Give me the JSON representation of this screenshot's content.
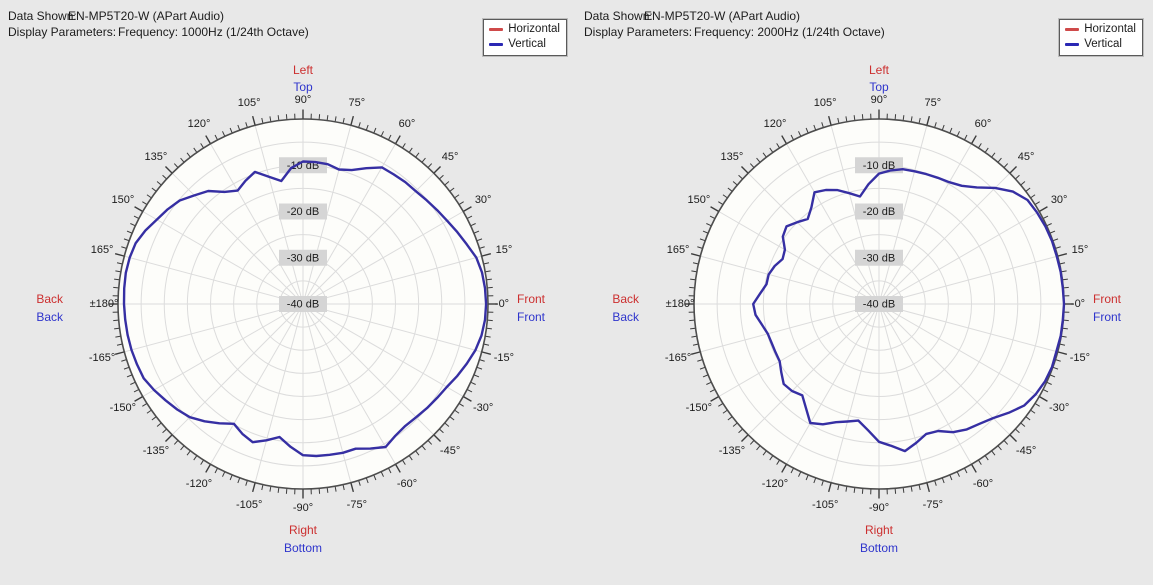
{
  "header_labels": {
    "data_shown": "Data Shown:",
    "display_parameters": "Display Parameters:"
  },
  "panels": [
    {
      "data_shown": "EN-MP5T20-W (APart Audio)",
      "display_parameters": "Frequency: 1000Hz (1/24th Octave)"
    },
    {
      "data_shown": "EN-MP5T20-W (APart Audio)",
      "display_parameters": "Frequency: 2000Hz (1/24th Octave)"
    }
  ],
  "legend": {
    "items": [
      {
        "label": "Horizontal",
        "color": "#cf4a4a"
      },
      {
        "label": "Vertical",
        "color": "#2a28b4"
      }
    ]
  },
  "direction_labels": {
    "top_red": "Left",
    "top_blue": "Top",
    "left_red": "Back",
    "left_blue": "Back",
    "right_red": "Front",
    "right_blue": "Front",
    "bottom_red": "Right",
    "bottom_blue": "Bottom"
  },
  "angle_ticks": {
    "angles": [
      90,
      75,
      60,
      45,
      30,
      15,
      0,
      -15,
      -30,
      -45,
      -60,
      -75,
      -90,
      -105,
      -120,
      -135,
      -150,
      -165,
      180,
      165,
      150,
      135,
      120,
      105
    ],
    "labels": [
      "90°",
      "75°",
      "60°",
      "45°",
      "30°",
      "15°",
      "-0°",
      "-15°",
      "-30°",
      "-45°",
      "-60°",
      "-75°",
      "-90°",
      "-105°",
      "-120°",
      "-135°",
      "-150°",
      "-165°",
      "±180°",
      "165°",
      "150°",
      "135°",
      "120°",
      "105°"
    ]
  },
  "db_labels": [
    "-10 dB",
    "-20 dB",
    "-30 dB",
    "-40 dB"
  ],
  "colors": {
    "background": "#e8e8e8",
    "plot_fill": "#fdfdfa",
    "grid": "#dcdcdc",
    "axis": "#4d4d4d",
    "tick": "#3c3c3c",
    "text": "#1c1c1c",
    "db_label_bg": "#d5d5d5",
    "red_label": "#cc2f2f",
    "blue_label": "#2f35cc",
    "curve": "#362fa3"
  },
  "chart_data": [
    {
      "type": "line",
      "polar": true,
      "title": "EN-MP5T20-W (APart Audio)",
      "subtitle": "Frequency: 1000Hz (1/24th Octave)",
      "legend_entries": [
        "Horizontal",
        "Vertical"
      ],
      "radial_axis": {
        "unit": "dB",
        "outer_db": 0,
        "center_db": -40,
        "ring_step_db": 5,
        "labeled_db": [
          -10,
          -20,
          -30,
          -40
        ]
      },
      "angle_step_deg": 15,
      "series": [
        {
          "name": "Vertical",
          "color": "#362fa3",
          "angles_deg": [
            0,
            5,
            10,
            15,
            20,
            25,
            30,
            35,
            40,
            45,
            50,
            55,
            60,
            65,
            70,
            75,
            80,
            85,
            90,
            95,
            100,
            105,
            110,
            115,
            120,
            125,
            130,
            135,
            140,
            145,
            150,
            155,
            160,
            165,
            170,
            175,
            180,
            -175,
            -170,
            -165,
            -160,
            -155,
            -150,
            -145,
            -140,
            -135,
            -130,
            -125,
            -120,
            -115,
            -110,
            -105,
            -100,
            -95,
            -90,
            -85,
            -80,
            -75,
            -70,
            -65,
            -60,
            -55,
            -50,
            -45,
            -40,
            -35,
            -30,
            -25,
            -20,
            -15,
            -10,
            -5
          ],
          "values_db": [
            -0.4,
            -0.5,
            -0.7,
            -1.2,
            -2.3,
            -3.2,
            -4.0,
            -4.6,
            -5.1,
            -5.5,
            -5.6,
            -5.8,
            -5.9,
            -7.6,
            -9.2,
            -9.9,
            -9.3,
            -9.2,
            -9.2,
            -10.5,
            -13.0,
            -11.5,
            -9.6,
            -10.6,
            -11.7,
            -10.4,
            -8.1,
            -6.8,
            -5.2,
            -4.3,
            -3.5,
            -2.4,
            -1.5,
            -1.2,
            -1.1,
            -1.2,
            -1.3,
            -1.4,
            -1.5,
            -1.6,
            -1.8,
            -2.0,
            -2.8,
            -3.7,
            -4.5,
            -5.4,
            -6.9,
            -8.5,
            -10.1,
            -9.0,
            -8.2,
            -9.5,
            -10.8,
            -9.0,
            -7.3,
            -7.0,
            -6.9,
            -6.7,
            -6.7,
            -5.5,
            -4.3,
            -5.2,
            -5.6,
            -5.4,
            -5.0,
            -4.6,
            -4.1,
            -3.2,
            -2.3,
            -1.4,
            -0.8,
            -0.5
          ]
        }
      ]
    },
    {
      "type": "line",
      "polar": true,
      "title": "EN-MP5T20-W (APart Audio)",
      "subtitle": "Frequency: 2000Hz (1/24th Octave)",
      "legend_entries": [
        "Horizontal",
        "Vertical"
      ],
      "radial_axis": {
        "unit": "dB",
        "outer_db": 0,
        "center_db": -40,
        "ring_step_db": 5,
        "labeled_db": [
          -10,
          -20,
          -30,
          -40
        ]
      },
      "angle_step_deg": 15,
      "series": [
        {
          "name": "Vertical",
          "color": "#362fa3",
          "angles_deg": [
            0,
            5,
            10,
            15,
            20,
            25,
            30,
            35,
            40,
            45,
            50,
            55,
            60,
            65,
            70,
            75,
            80,
            85,
            90,
            95,
            100,
            105,
            110,
            115,
            120,
            125,
            130,
            135,
            140,
            145,
            150,
            155,
            160,
            165,
            170,
            175,
            180,
            -175,
            -170,
            -165,
            -160,
            -155,
            -150,
            -145,
            -140,
            -135,
            -130,
            -125,
            -120,
            -115,
            -110,
            -105,
            -100,
            -95,
            -90,
            -85,
            -80,
            -75,
            -70,
            -65,
            -60,
            -55,
            -50,
            -45,
            -40,
            -35,
            -30,
            -25,
            -20,
            -15,
            -10,
            -5
          ],
          "values_db": [
            0,
            -0.1,
            -0.1,
            -0.2,
            -0.2,
            -0.3,
            -0.5,
            -0.8,
            -2.2,
            -4.5,
            -7.1,
            -8.8,
            -9.6,
            -9.9,
            -10.1,
            -10.3,
            -10.4,
            -11.0,
            -11.8,
            -14.0,
            -16.4,
            -15.2,
            -13.8,
            -12.8,
            -12.1,
            -14.5,
            -16.0,
            -15.0,
            -13.9,
            -14.6,
            -16.5,
            -17.0,
            -16.0,
            -15.3,
            -15.3,
            -14.2,
            -12.8,
            -13.2,
            -14.3,
            -15.1,
            -15.3,
            -15.3,
            -15.2,
            -14.2,
            -13.1,
            -13.4,
            -14.2,
            -12.5,
            -10.3,
            -11.3,
            -12.8,
            -13.7,
            -14.4,
            -12.6,
            -10.2,
            -9.2,
            -7.7,
            -8.9,
            -10.1,
            -9.7,
            -8.0,
            -6.9,
            -6.2,
            -5.1,
            -3.4,
            -1.7,
            -0.9,
            -0.4,
            -0.2,
            -0.3,
            -0.1,
            -0.1
          ]
        }
      ]
    }
  ]
}
